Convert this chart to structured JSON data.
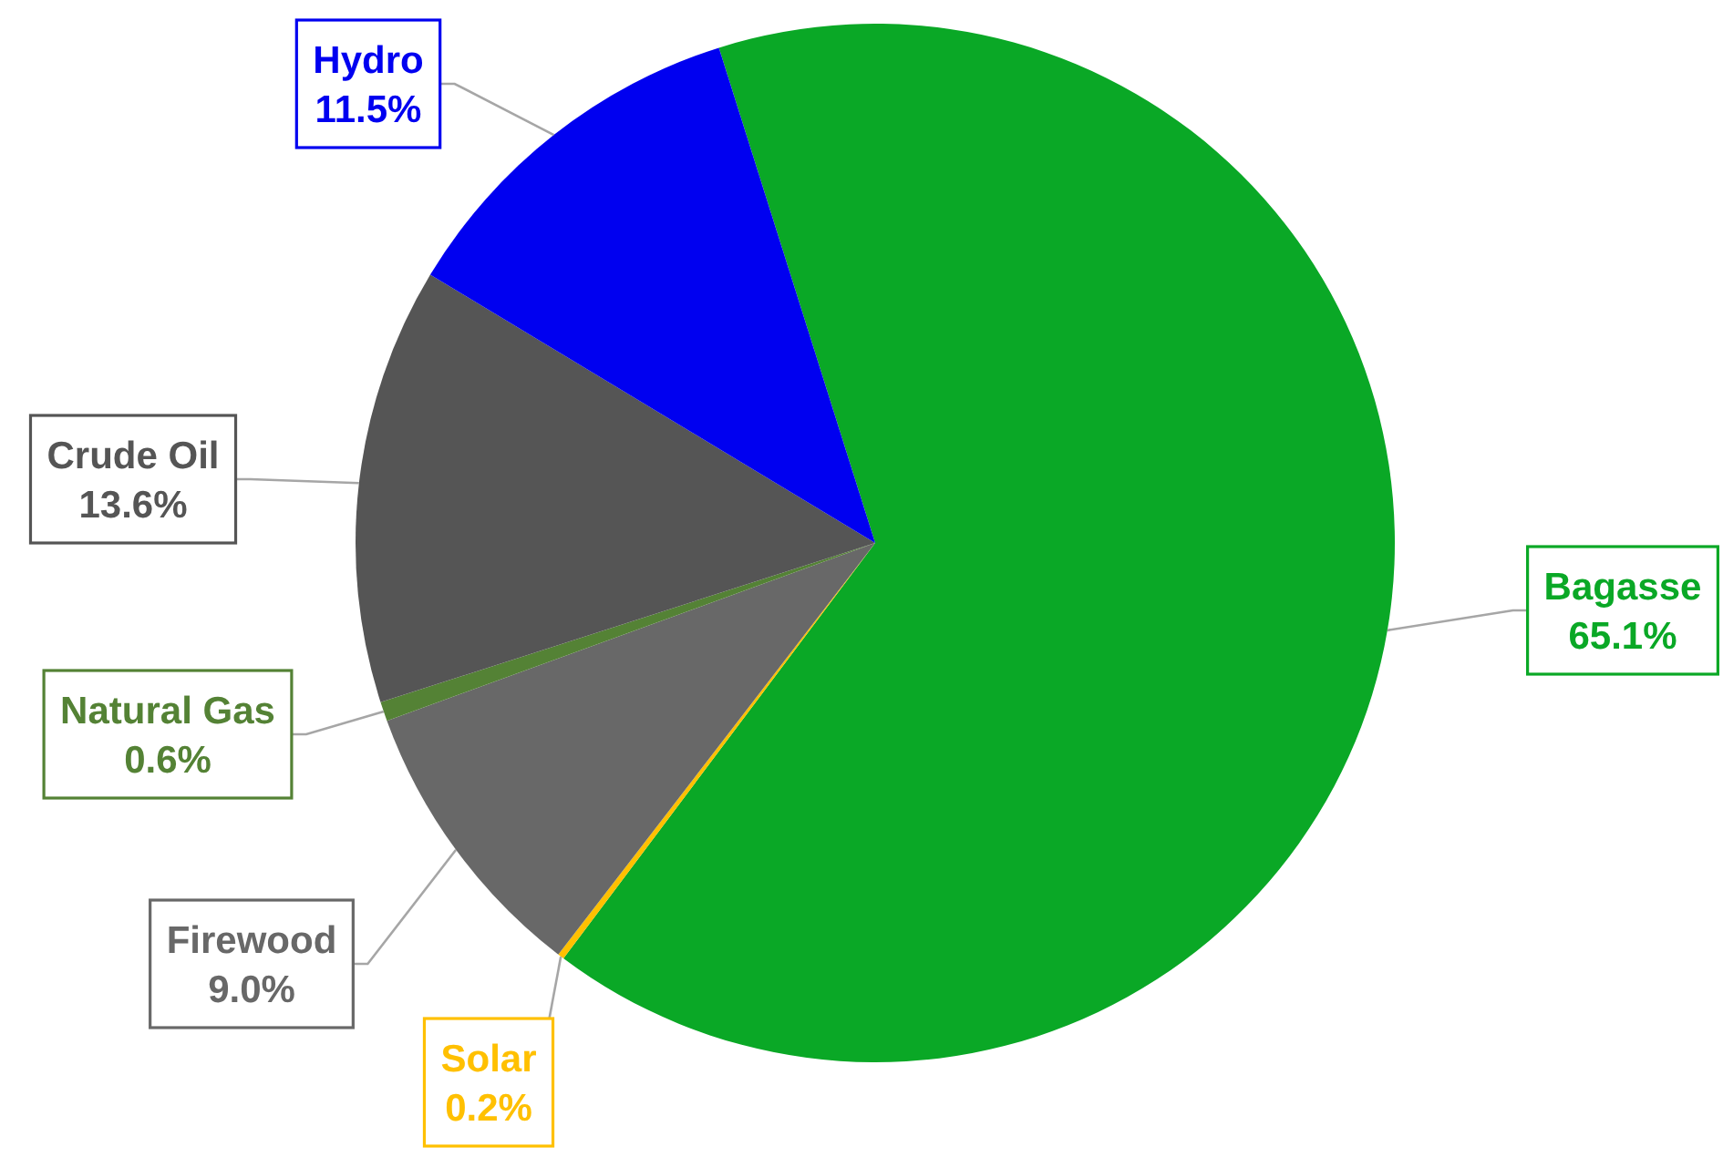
{
  "chart_data": {
    "type": "pie",
    "categories": [
      "Bagasse",
      "Solar",
      "Firewood",
      "Natural Gas",
      "Crude Oil",
      "Hydro"
    ],
    "values": [
      65.1,
      0.2,
      9.0,
      0.6,
      13.6,
      11.5
    ],
    "colors": [
      "#0aa826",
      "#ffc000",
      "#686868",
      "#548235",
      "#555555",
      "#0000f0"
    ],
    "value_labels": [
      "65.1%",
      "0.2%",
      "9.0%",
      "0.6%",
      "13.6%",
      "11.5%"
    ]
  }
}
